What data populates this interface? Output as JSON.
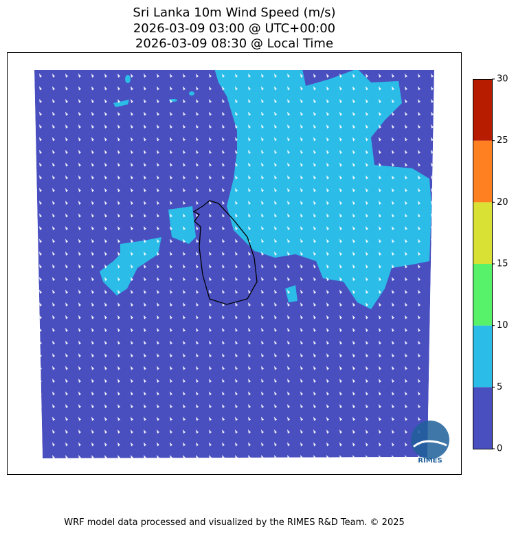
{
  "title": [
    "Sri Lanka 10m Wind Speed (m/s)",
    "2026-03-09 03:00 @ UTC+00:00",
    "2026-03-09 08:30 @ Local Time"
  ],
  "colorbar": {
    "levels": [
      0,
      5,
      10,
      15,
      20,
      25,
      30
    ],
    "colors": [
      "#4a4fbf",
      "#2bbde8",
      "#58f26a",
      "#d9e234",
      "#ff8020",
      "#b81c00"
    ]
  },
  "logo": "RIMES",
  "footer": "WRF model data processed and visualized by the RIMES R&D Team. © 2025"
}
